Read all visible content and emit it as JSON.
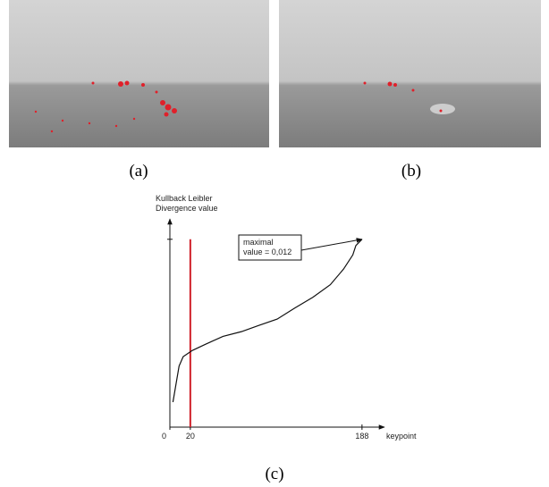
{
  "panels": {
    "a": {
      "caption": "(a)"
    },
    "b": {
      "caption": "(b)"
    },
    "c": {
      "caption": "(c)"
    }
  },
  "chart_data": {
    "type": "line",
    "ylabel": [
      "Kullback Leibler",
      "Divergence value"
    ],
    "xlabel": "keypoint",
    "x": [
      3,
      9,
      13,
      22,
      35,
      52,
      70,
      87,
      105,
      122,
      140,
      157,
      170,
      179,
      182,
      188
    ],
    "values": [
      0.0016,
      0.0039,
      0.0045,
      0.0049,
      0.0053,
      0.0058,
      0.0061,
      0.0065,
      0.0069,
      0.0076,
      0.0083,
      0.0091,
      0.0101,
      0.011,
      0.0116,
      0.012
    ],
    "color": "#111111",
    "xlim": [
      0,
      210
    ],
    "ylim": [
      0,
      0.0133
    ],
    "xticks": [
      0,
      20,
      188
    ],
    "marker_x": 20,
    "marker_color": "#d0202a",
    "annotation": {
      "lines": [
        "maximal",
        "value = 0,012"
      ],
      "x": 188,
      "y": 0.012
    }
  }
}
